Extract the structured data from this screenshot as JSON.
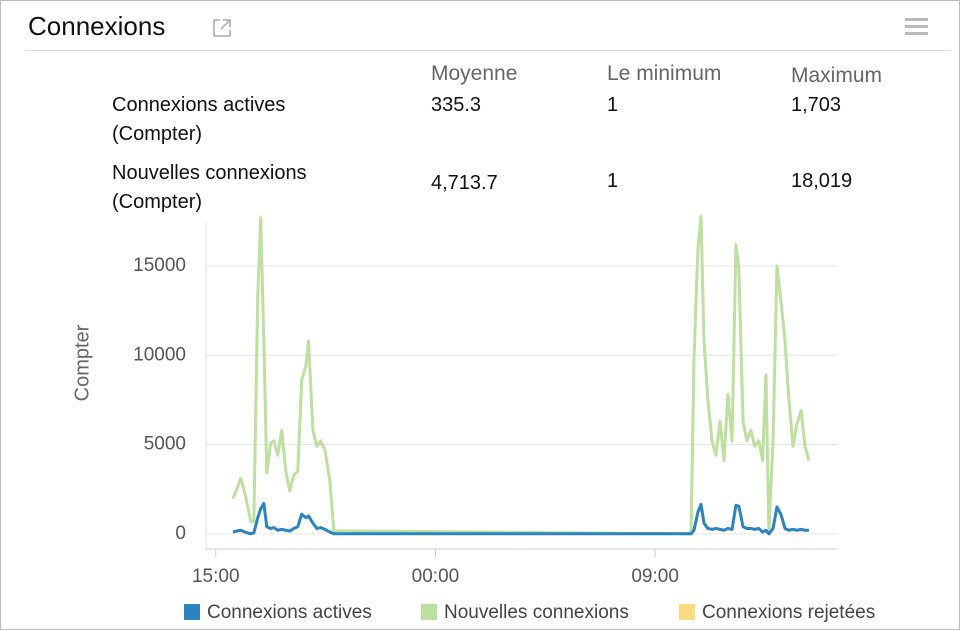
{
  "header": {
    "title": "Connexions"
  },
  "table": {
    "columns": [
      "Moyenne",
      "Le minimum",
      "Maximum"
    ],
    "rows": [
      {
        "label": "Connexions actives (Compter)",
        "cells": [
          "335.3",
          "1",
          "1,703"
        ]
      },
      {
        "label": "Nouvelles connexions (Compter)",
        "cells": [
          "4,713.7",
          "1",
          "18,019"
        ]
      }
    ]
  },
  "chart_data": {
    "type": "line",
    "ylabel": "Compter",
    "x": [
      15.7,
      15.86,
      16.02,
      16.19,
      16.43,
      16.56,
      16.72,
      16.84,
      16.97,
      17.09,
      17.25,
      17.38,
      17.54,
      17.7,
      17.87,
      18.03,
      18.2,
      18.36,
      18.52,
      18.69,
      18.8,
      18.98,
      19.14,
      19.3,
      19.47,
      19.67,
      19.84,
      34.47,
      34.59,
      34.75,
      34.88,
      35.0,
      35.16,
      35.33,
      35.49,
      35.66,
      35.82,
      35.98,
      36.15,
      36.31,
      36.43,
      36.6,
      36.76,
      36.92,
      37.08,
      37.25,
      37.4,
      37.54,
      37.66,
      37.83,
      37.99,
      38.15,
      38.32,
      38.48,
      38.65,
      38.8,
      38.98,
      39.14,
      39.3
    ],
    "xlim": [
      14.6,
      40.45
    ],
    "xticks": [
      {
        "value": 15,
        "label": "15:00"
      },
      {
        "value": 24,
        "label": "00:00"
      },
      {
        "value": 33,
        "label": "09:00"
      }
    ],
    "ylim": [
      -850,
      17800
    ],
    "yticks": [
      0,
      5000,
      10000,
      15000
    ],
    "grid": true,
    "series": [
      {
        "name": "Connexions actives",
        "color": "#2b83c0",
        "values": [
          100,
          150,
          200,
          100,
          0,
          50,
          900,
          1400,
          1700,
          400,
          300,
          350,
          200,
          250,
          200,
          150,
          300,
          400,
          1100,
          900,
          1000,
          600,
          300,
          350,
          250,
          100,
          1,
          1,
          200,
          1200,
          1650,
          600,
          300,
          250,
          300,
          250,
          200,
          300,
          250,
          1600,
          1550,
          400,
          300,
          300,
          250,
          300,
          100,
          200,
          1,
          300,
          1500,
          1100,
          300,
          200,
          250,
          200,
          250,
          200,
          200
        ]
      },
      {
        "name": "Nouvelles connexions",
        "color": "#bde0a0",
        "values": [
          1970,
          2500,
          3100,
          2300,
          700,
          700,
          13300,
          17700,
          10800,
          3400,
          5100,
          5200,
          4400,
          5800,
          3500,
          2400,
          3300,
          3500,
          8600,
          9400,
          10800,
          5800,
          4900,
          5200,
          4700,
          3000,
          170,
          1,
          9700,
          15900,
          17800,
          10800,
          7500,
          5200,
          4400,
          6300,
          4100,
          7800,
          5200,
          16200,
          14800,
          6300,
          5200,
          5800,
          4900,
          5200,
          4100,
          8900,
          170,
          5200,
          15000,
          13100,
          10800,
          7500,
          4900,
          6100,
          6900,
          4900,
          4100
        ]
      },
      {
        "name": "Connexions rejetées",
        "color": "#fddc7f",
        "values": [
          null,
          null,
          null,
          null,
          null,
          null,
          null,
          null,
          null,
          null,
          null,
          null,
          null,
          null,
          null,
          null,
          null,
          null,
          null,
          null,
          null,
          null,
          null,
          null,
          null,
          null,
          null,
          null,
          null,
          null,
          null,
          null,
          null,
          null,
          null,
          null,
          null,
          null,
          null,
          null,
          null,
          null,
          null,
          null,
          null,
          null,
          null,
          null,
          null,
          null,
          null,
          null,
          null,
          null,
          null,
          null,
          null,
          null,
          null
        ]
      }
    ]
  }
}
